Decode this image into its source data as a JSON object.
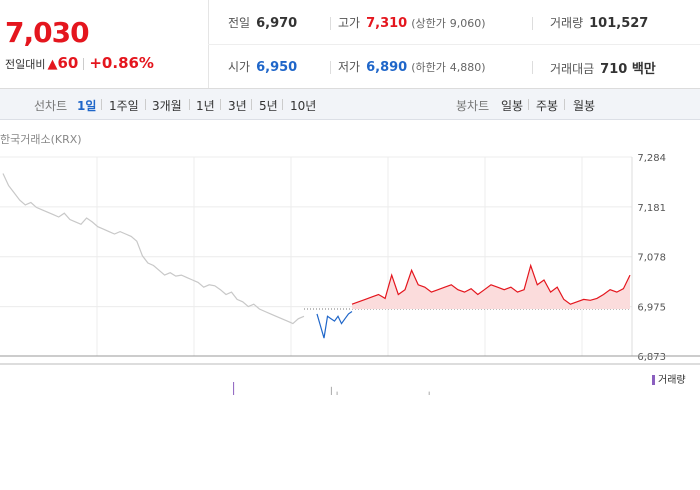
{
  "quote": {
    "price": "7,030",
    "change_label": "전일대비",
    "change_arrow": "▲",
    "change_value": "60",
    "change_pct": "+0.86%",
    "color_up": "#e4161e",
    "color_down": "#1f66c9"
  },
  "stats": {
    "prev_close_label": "전일",
    "prev_close": "6,970",
    "high_label": "고가",
    "high": "7,310",
    "upper_limit_label": "(상한가",
    "upper_limit": "9,060)",
    "volume_label": "거래량",
    "volume": "101,527",
    "open_label": "시가",
    "open": "6,950",
    "low_label": "저가",
    "low": "6,890",
    "lower_limit_label": "(하한가",
    "lower_limit": "4,880)",
    "amount_label": "거래대금",
    "amount": "710 백만"
  },
  "tabs": {
    "left_label": "선차트",
    "periods": [
      "1일",
      "1주일",
      "3개월",
      "1년",
      "3년",
      "5년",
      "10년"
    ],
    "active_period": "1일",
    "right_label": "봉차트",
    "candles": [
      "일봉",
      "주봉",
      "월봉"
    ]
  },
  "exchange": "한국거래소(KRX)",
  "volume_legend": "거래량",
  "chart_data": {
    "type": "line",
    "title": "",
    "xlabel": "",
    "ylabel": "",
    "y_ticks": [
      "7,284",
      "7,181",
      "7,078",
      "6,975",
      "6,873"
    ],
    "ylim": [
      6873,
      7284
    ],
    "reference_line": 6970,
    "grid": true,
    "legend": "bottom-right",
    "series": [
      {
        "segment": "previous-day",
        "color": "#c8c8c8",
        "values": [
          7250,
          7225,
          7210,
          7195,
          7185,
          7190,
          7180,
          7175,
          7170,
          7165,
          7160,
          7168,
          7155,
          7150,
          7145,
          7158,
          7150,
          7140,
          7135,
          7130,
          7125,
          7130,
          7125,
          7120,
          7110,
          7080,
          7065,
          7060,
          7050,
          7040,
          7045,
          7038,
          7040,
          7035,
          7030,
          7025,
          7015,
          7020,
          7018,
          7010,
          7000,
          7005,
          6990,
          6985,
          6975,
          6980,
          6970,
          6965,
          6960,
          6955,
          6950,
          6945,
          6940,
          6950,
          6955
        ]
      },
      {
        "segment": "today-below-prev",
        "color": "#1f66c9",
        "values": [
          6960,
          6935,
          6910,
          6955,
          6950,
          6945,
          6955,
          6940,
          6950,
          6960,
          6965
        ]
      },
      {
        "segment": "today-above-prev",
        "color": "#e4161e",
        "values": [
          6980,
          6985,
          6990,
          6995,
          7000,
          6992,
          7040,
          7000,
          7010,
          7050,
          7020,
          7015,
          7005,
          7010,
          7015,
          7020,
          7010,
          7005,
          7012,
          7000,
          7010,
          7020,
          7015,
          7010,
          7015,
          7005,
          7010,
          7060,
          7020,
          7030,
          7005,
          7015,
          6990,
          6980,
          6985,
          6990,
          6988,
          6992,
          7000,
          7010,
          7005,
          7012,
          7040
        ]
      }
    ],
    "volume": [
      0,
      0,
      0,
      1,
      0,
      0,
      0,
      2,
      0,
      0,
      0,
      1,
      0,
      0,
      0,
      0,
      1,
      0,
      0,
      0,
      0,
      0,
      1,
      0,
      0,
      0,
      0,
      0,
      0,
      0,
      0,
      1,
      0,
      0,
      0,
      0,
      0,
      1,
      0,
      0,
      5,
      1,
      2,
      1,
      0,
      1,
      0,
      0,
      0,
      1,
      0,
      1,
      0,
      1,
      0,
      2,
      1,
      4,
      3,
      0,
      0,
      1,
      2,
      0,
      1,
      0,
      1,
      0,
      0,
      0,
      0,
      1,
      0,
      0,
      3,
      1,
      0,
      1,
      0,
      0,
      0,
      0,
      0,
      1,
      0,
      0,
      1,
      0,
      0,
      0,
      0,
      0,
      0,
      0,
      0,
      1,
      0,
      0,
      0,
      1,
      0,
      0,
      1,
      0,
      0,
      0,
      0,
      1,
      0,
      0
    ]
  }
}
